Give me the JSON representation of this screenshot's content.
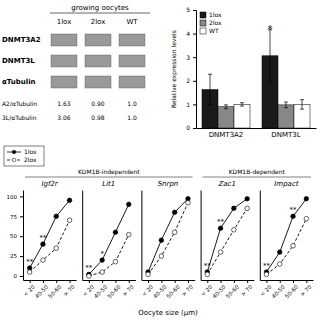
{
  "chart_data": [
    {
      "type": "table",
      "title": "growing oocytes",
      "categories": [
        "1lox",
        "2lox",
        "WT"
      ],
      "series": [
        {
          "name": "DNMT3A2",
          "type": "band"
        },
        {
          "name": "DNMT3L",
          "type": "band"
        },
        {
          "name": "αTubulin",
          "type": "band"
        },
        {
          "name": "A2/αTubulin",
          "type": "table",
          "values": [
            1.63,
            0.9,
            1.0
          ],
          "value_labels": [
            "1.63",
            "0.90",
            "1.0"
          ]
        },
        {
          "name": "3L/αTubulin",
          "type": "table",
          "values": [
            3.06,
            0.98,
            1.0
          ],
          "value_labels": [
            "3.06",
            "0.98",
            "1.0"
          ]
        }
      ]
    },
    {
      "type": "bar",
      "categories": [
        "DNMT3A2",
        "DNMT3L"
      ],
      "ylabel": "Relative expression levels",
      "ylim": [
        0,
        5
      ],
      "yticks": [
        0,
        1,
        2,
        3,
        4,
        5
      ],
      "legend": "upper left",
      "series": [
        {
          "name": "1lox",
          "color": "#1a1a1a",
          "values": [
            1.63,
            3.06
          ],
          "errors": [
            0.65,
            1.1
          ]
        },
        {
          "name": "2lox",
          "color": "#888888",
          "values": [
            0.9,
            0.98
          ],
          "errors": [
            0.08,
            0.12
          ]
        },
        {
          "name": "WT",
          "color": "#ffffff",
          "values": [
            1.0,
            1.0
          ],
          "errors": [
            0.07,
            0.2
          ]
        }
      ],
      "annotations": [
        {
          "text": "*",
          "category": "DNMT3L",
          "series": "1lox"
        }
      ]
    },
    {
      "type": "line",
      "title": "Igf2r",
      "subtitle": "KDM1B-independent",
      "categories": [
        "< 20",
        "40-50",
        "50-60",
        "> 70"
      ],
      "ylim": [
        -5,
        108
      ],
      "yticks": [
        0,
        25,
        50,
        75,
        100
      ],
      "legend": "upper left",
      "series": [
        {
          "name": "1lox",
          "color": "#000000",
          "marker": "filled-circle",
          "line_style": "solid",
          "values": [
            10,
            40,
            75,
            95
          ]
        },
        {
          "name": "2lox",
          "color": "#000000",
          "marker": "open-circle",
          "line_style": "dashed",
          "values": [
            5,
            20,
            35,
            70
          ]
        }
      ],
      "annotations": [
        {
          "text": "**",
          "category": "< 20"
        },
        {
          "text": "**",
          "category": "40-50"
        }
      ]
    },
    {
      "type": "line",
      "title": "Lit1",
      "categories": [
        "< 20",
        "40-50",
        "50-60",
        "> 70"
      ],
      "ylim": [
        -5,
        108
      ],
      "tick_labels": "x",
      "series": [
        {
          "name": "1lox",
          "color": "#000000",
          "marker": "filled-circle",
          "line_style": "solid",
          "values": [
            2,
            20,
            55,
            90
          ]
        },
        {
          "name": "2lox",
          "color": "#000000",
          "marker": "open-circle",
          "line_style": "dashed",
          "values": [
            0,
            5,
            18,
            52
          ]
        }
      ],
      "annotations": [
        {
          "text": "**",
          "category": "< 20"
        },
        {
          "text": "*",
          "category": "40-50"
        }
      ]
    },
    {
      "type": "line",
      "title": "Snrpn",
      "xlabel": "Oocyte size (μm)",
      "categories": [
        "< 20",
        "40-50",
        "50-60",
        "> 70"
      ],
      "ylim": [
        -5,
        108
      ],
      "tick_labels": "x",
      "series": [
        {
          "name": "1lox",
          "color": "#000000",
          "marker": "filled-circle",
          "line_style": "solid",
          "values": [
            5,
            45,
            80,
            97
          ]
        },
        {
          "name": "2lox",
          "color": "#000000",
          "marker": "open-circle",
          "line_style": "dashed",
          "values": [
            2,
            25,
            55,
            92
          ]
        }
      ]
    },
    {
      "type": "line",
      "title": "Zac1",
      "subtitle": "KDM1B-dependent",
      "categories": [
        "< 20",
        "40-50",
        "50-60",
        "> 70"
      ],
      "ylim": [
        -5,
        108
      ],
      "tick_labels": "x",
      "series": [
        {
          "name": "1lox",
          "color": "#000000",
          "marker": "filled-circle",
          "line_style": "solid",
          "values": [
            5,
            60,
            85,
            97
          ]
        },
        {
          "name": "2lox",
          "color": "#000000",
          "marker": "open-circle",
          "line_style": "dashed",
          "values": [
            2,
            30,
            58,
            85
          ]
        }
      ],
      "annotations": [
        {
          "text": "**",
          "category": "< 20"
        },
        {
          "text": "**",
          "category": "40-50"
        }
      ]
    },
    {
      "type": "line",
      "title": "Impact",
      "categories": [
        "< 20",
        "40-50",
        "50-60",
        "> 70"
      ],
      "ylim": [
        -5,
        108
      ],
      "tick_labels": "x",
      "series": [
        {
          "name": "1lox",
          "color": "#000000",
          "marker": "filled-circle",
          "line_style": "solid",
          "values": [
            5,
            30,
            75,
            97
          ]
        },
        {
          "name": "2lox",
          "color": "#000000",
          "marker": "open-circle",
          "line_style": "dashed",
          "values": [
            2,
            15,
            38,
            72
          ]
        }
      ],
      "annotations": [
        {
          "text": "**",
          "category": "< 20"
        },
        {
          "text": "**",
          "category": "50-60"
        }
      ]
    }
  ]
}
